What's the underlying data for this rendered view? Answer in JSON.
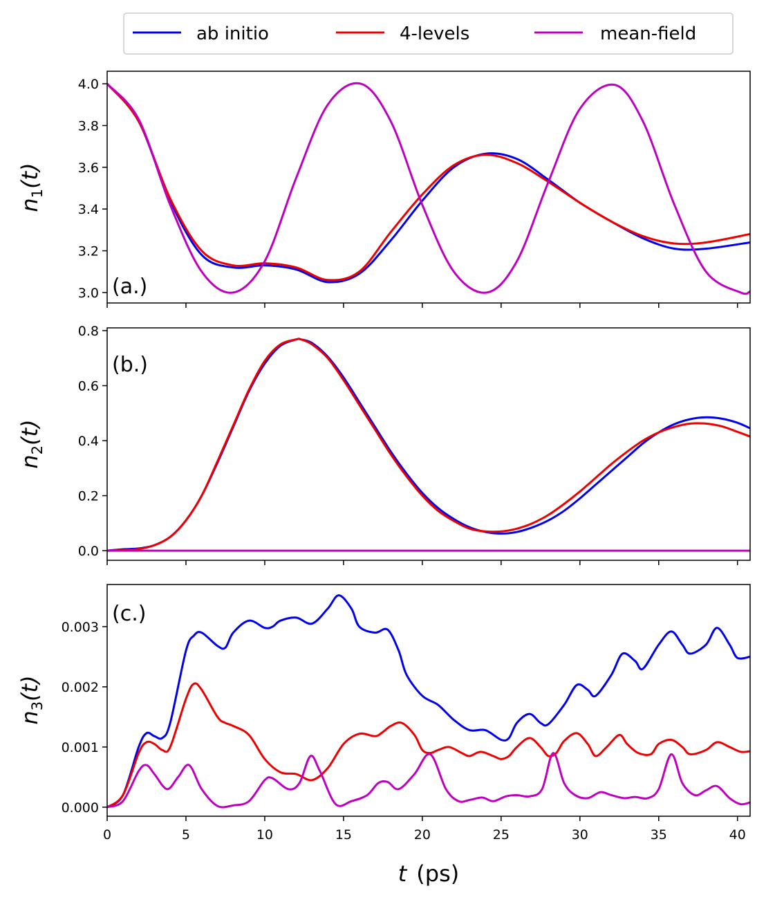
{
  "legend": {
    "entries": [
      {
        "name": "ab initio",
        "color": "#0000ee"
      },
      {
        "name": "4-levels",
        "color": "#ee0000"
      },
      {
        "name": "mean-field",
        "color": "#c000c0"
      }
    ]
  },
  "xaxis": {
    "label_t": "t",
    "label_unit": "(ps)",
    "ticks": [
      0,
      5,
      10,
      15,
      20,
      25,
      30,
      35,
      40
    ],
    "xlim": [
      0,
      40.8
    ]
  },
  "chart_data": [
    {
      "type": "line",
      "panel_label": "(a.)",
      "ylabel_base": "n",
      "ylabel_sub": "1",
      "ylabel_arg": "(t)",
      "ylim": [
        2.95,
        4.06
      ],
      "yticks": [
        3.0,
        3.2,
        3.4,
        3.6,
        3.8,
        4.0
      ],
      "ytick_labels": [
        "3.0",
        "3.2",
        "3.4",
        "3.6",
        "3.8",
        "4.0"
      ],
      "series": [
        {
          "name": "ab initio",
          "color": "#0000ee",
          "x": [
            0,
            2,
            4,
            6,
            8,
            10,
            12,
            14,
            16,
            18,
            20,
            22,
            24,
            26,
            28,
            30,
            32,
            34,
            36,
            38,
            40.8
          ],
          "y": [
            4.0,
            3.82,
            3.44,
            3.18,
            3.12,
            3.13,
            3.11,
            3.05,
            3.09,
            3.25,
            3.44,
            3.6,
            3.665,
            3.64,
            3.54,
            3.43,
            3.34,
            3.26,
            3.21,
            3.21,
            3.24
          ]
        },
        {
          "name": "4-levels",
          "color": "#ee0000",
          "x": [
            0,
            2,
            4,
            6,
            8,
            10,
            12,
            14,
            16,
            18,
            20,
            22,
            24,
            26,
            28,
            30,
            32,
            34,
            36,
            38,
            40.8
          ],
          "y": [
            4.0,
            3.82,
            3.45,
            3.2,
            3.13,
            3.14,
            3.12,
            3.06,
            3.1,
            3.29,
            3.47,
            3.61,
            3.66,
            3.62,
            3.53,
            3.43,
            3.34,
            3.27,
            3.235,
            3.24,
            3.28
          ]
        },
        {
          "name": "mean-field",
          "color": "#c000c0",
          "x": [
            0,
            2,
            4,
            6,
            8,
            10,
            12,
            14,
            16.1,
            18,
            20,
            22,
            24.1,
            26,
            28,
            30,
            32.2,
            34,
            36,
            38,
            40.2,
            40.8
          ],
          "y": [
            4.0,
            3.83,
            3.42,
            3.1,
            3.0,
            3.15,
            3.55,
            3.9,
            4.0,
            3.82,
            3.42,
            3.1,
            3.0,
            3.15,
            3.53,
            3.88,
            3.995,
            3.82,
            3.42,
            3.1,
            3.0,
            3.005
          ]
        }
      ]
    },
    {
      "type": "line",
      "panel_label": "(b.)",
      "ylabel_base": "n",
      "ylabel_sub": "2",
      "ylabel_arg": "(t)",
      "ylim": [
        -0.035,
        0.81
      ],
      "yticks": [
        0.0,
        0.2,
        0.4,
        0.6,
        0.8
      ],
      "ytick_labels": [
        "0.0",
        "0.2",
        "0.4",
        "0.6",
        "0.8"
      ],
      "series": [
        {
          "name": "ab initio",
          "color": "#0000ee",
          "x": [
            0,
            1,
            2,
            3,
            4,
            5,
            6,
            7,
            8,
            9,
            10,
            11,
            12,
            12.3,
            13,
            14,
            15,
            16,
            17,
            18,
            19,
            20,
            21,
            22,
            23,
            24,
            25,
            26,
            27,
            28,
            29,
            30,
            31,
            32,
            33,
            34,
            35,
            36,
            37,
            38,
            39,
            40,
            40.8
          ],
          "y": [
            0.0,
            0.005,
            0.008,
            0.02,
            0.05,
            0.11,
            0.2,
            0.32,
            0.45,
            0.58,
            0.68,
            0.745,
            0.768,
            0.768,
            0.755,
            0.705,
            0.63,
            0.54,
            0.45,
            0.36,
            0.28,
            0.21,
            0.155,
            0.115,
            0.085,
            0.068,
            0.062,
            0.068,
            0.085,
            0.11,
            0.145,
            0.19,
            0.24,
            0.29,
            0.34,
            0.39,
            0.43,
            0.46,
            0.478,
            0.485,
            0.48,
            0.465,
            0.445
          ]
        },
        {
          "name": "4-levels",
          "color": "#ee0000",
          "x": [
            0,
            1,
            2,
            3,
            4,
            5,
            6,
            7,
            8,
            9,
            10,
            11,
            12,
            12.3,
            13,
            14,
            15,
            16,
            17,
            18,
            19,
            20,
            21,
            22,
            23,
            24,
            25,
            26,
            27,
            28,
            29,
            30,
            31,
            32,
            33,
            34,
            35,
            36,
            37,
            38,
            39,
            40,
            40.8
          ],
          "y": [
            0.0,
            0.002,
            0.006,
            0.02,
            0.05,
            0.11,
            0.2,
            0.325,
            0.455,
            0.585,
            0.69,
            0.75,
            0.768,
            0.768,
            0.75,
            0.7,
            0.62,
            0.53,
            0.44,
            0.35,
            0.27,
            0.2,
            0.145,
            0.108,
            0.08,
            0.07,
            0.07,
            0.08,
            0.1,
            0.13,
            0.17,
            0.215,
            0.265,
            0.315,
            0.36,
            0.4,
            0.43,
            0.45,
            0.462,
            0.462,
            0.452,
            0.432,
            0.415
          ]
        },
        {
          "name": "mean-field",
          "color": "#c000c0",
          "x": [
            0,
            40.8
          ],
          "y": [
            0.0,
            0.0
          ]
        }
      ]
    },
    {
      "type": "line",
      "panel_label": "(c.)",
      "ylabel_base": "n",
      "ylabel_sub": "3",
      "ylabel_arg": "(t)",
      "ylim": [
        -0.00015,
        0.0037
      ],
      "yticks": [
        0.0,
        0.001,
        0.002,
        0.003
      ],
      "ytick_labels": [
        "0.000",
        "0.001",
        "0.002",
        "0.003"
      ],
      "series": [
        {
          "name": "ab initio",
          "color": "#0000ee",
          "x": [
            0,
            1,
            2,
            2.5,
            3,
            3.5,
            4,
            5,
            5.5,
            6,
            7,
            7.5,
            8,
            9,
            10,
            10.5,
            11,
            12,
            13,
            14,
            14.7,
            15.5,
            16,
            17,
            17.8,
            18.5,
            19,
            20,
            21,
            22,
            23,
            24,
            25,
            25.5,
            26,
            26.8,
            27.5,
            28,
            29,
            29.8,
            30.5,
            31,
            32,
            32.7,
            33.5,
            34,
            35,
            35.8,
            36.5,
            37,
            38,
            38.7,
            39.5,
            40,
            40.8
          ],
          "y": [
            0.0,
            0.0002,
            0.001,
            0.00123,
            0.00118,
            0.00115,
            0.0014,
            0.0026,
            0.00285,
            0.0029,
            0.00268,
            0.00265,
            0.0029,
            0.0031,
            0.00298,
            0.003,
            0.0031,
            0.00315,
            0.00305,
            0.0033,
            0.00352,
            0.0033,
            0.003,
            0.0029,
            0.00295,
            0.0026,
            0.0022,
            0.00185,
            0.0017,
            0.00145,
            0.00128,
            0.00128,
            0.00112,
            0.00115,
            0.0014,
            0.00155,
            0.0014,
            0.00138,
            0.0017,
            0.00203,
            0.00195,
            0.00185,
            0.0022,
            0.00255,
            0.00243,
            0.0023,
            0.0027,
            0.00292,
            0.0027,
            0.00255,
            0.0027,
            0.00298,
            0.0027,
            0.00248,
            0.0025
          ]
        },
        {
          "name": "4-levels",
          "color": "#ee0000",
          "x": [
            0,
            1,
            2,
            2.5,
            3,
            3.5,
            4,
            5,
            5.5,
            6,
            7,
            7.5,
            8,
            9,
            10,
            11,
            12,
            13,
            14,
            15,
            16,
            17,
            17.5,
            18,
            18.7,
            19.5,
            20,
            20.5,
            21,
            21.7,
            22.5,
            23,
            23.7,
            24.5,
            25,
            25.5,
            26,
            26.8,
            27.5,
            28,
            28.5,
            29,
            29.8,
            30.5,
            31,
            31.7,
            32.5,
            33,
            33.7,
            34.5,
            35,
            35.8,
            36.5,
            37,
            38,
            38.7,
            39.5,
            40.2,
            40.8
          ],
          "y": [
            0.0,
            0.0002,
            0.0009,
            0.00108,
            0.00105,
            0.00095,
            0.001,
            0.0018,
            0.00205,
            0.00195,
            0.0015,
            0.0014,
            0.00135,
            0.0012,
            0.0008,
            0.00058,
            0.00055,
            0.00045,
            0.00065,
            0.00105,
            0.00122,
            0.00118,
            0.00125,
            0.00135,
            0.0014,
            0.0012,
            0.00095,
            0.0009,
            0.00095,
            0.001,
            0.0009,
            0.00085,
            0.00092,
            0.00085,
            0.0008,
            0.00085,
            0.001,
            0.00115,
            0.001,
            0.00085,
            0.0009,
            0.0011,
            0.00123,
            0.00105,
            0.00085,
            0.001,
            0.0012,
            0.00105,
            0.0009,
            0.00088,
            0.00105,
            0.00112,
            0.001,
            0.00088,
            0.00095,
            0.00108,
            0.001,
            0.00092,
            0.00093
          ]
        },
        {
          "name": "mean-field",
          "color": "#c000c0",
          "x": [
            0,
            1,
            2,
            2.5,
            3,
            3.8,
            4.5,
            5.2,
            6,
            7,
            8,
            9,
            10,
            10.5,
            11.5,
            12.2,
            12.9,
            13.5,
            14.5,
            15.5,
            16.5,
            17.2,
            17.8,
            18.5,
            19.5,
            20.5,
            21.5,
            22.3,
            23,
            23.8,
            24.5,
            25.3,
            26,
            26.8,
            27.6,
            28.3,
            29,
            29.7,
            30.5,
            31.3,
            32,
            32.8,
            33.5,
            34.3,
            35,
            35.8,
            36.5,
            37.3,
            38,
            38.7,
            39.5,
            40.2,
            40.8
          ],
          "y": [
            0.0,
            0.0001,
            0.0006,
            0.0007,
            0.00055,
            0.0003,
            0.0005,
            0.0007,
            0.0003,
            2e-05,
            3e-05,
            0.0001,
            0.00045,
            0.00048,
            0.0003,
            0.0004,
            0.00085,
            0.0006,
            5e-05,
            0.0001,
            0.0002,
            0.0004,
            0.00042,
            0.0003,
            0.00055,
            0.00088,
            0.0003,
            0.0001,
            0.00012,
            0.00016,
            0.0001,
            0.00018,
            0.0002,
            0.00018,
            0.0003,
            0.0009,
            0.0004,
            0.0002,
            0.00015,
            0.00025,
            0.0002,
            0.00015,
            0.00017,
            0.00015,
            0.0003,
            0.00088,
            0.0004,
            0.0002,
            0.00028,
            0.00035,
            0.00015,
            5e-05,
            8e-05
          ]
        }
      ]
    }
  ]
}
